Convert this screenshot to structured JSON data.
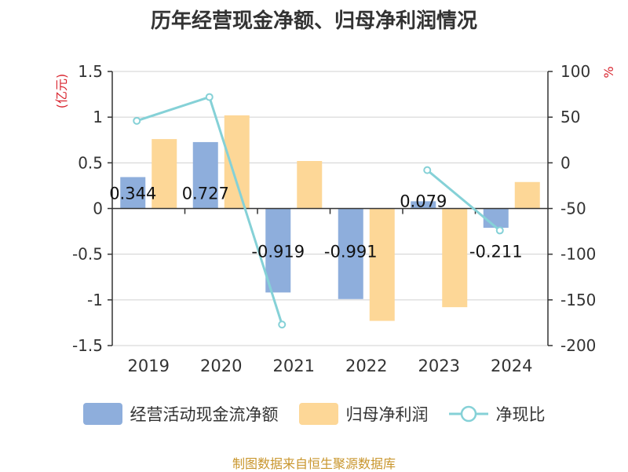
{
  "title": "历年经营现金净额、归母净利润情况",
  "left_unit": "(亿元)",
  "right_unit": "%",
  "source": "制图数据来自恒生聚源数据库",
  "legend": {
    "cash_flow": "经营活动现金流净额",
    "net_profit": "归母净利润",
    "ratio": "净现比"
  },
  "colors": {
    "cash_flow": "#8eaedc",
    "net_profit": "#fdd797",
    "ratio": "#85d1d7",
    "unit_label": "#d9252f",
    "source": "#c9962d"
  },
  "chart_data": {
    "type": "bar",
    "categories": [
      "2019",
      "2020",
      "2021",
      "2022",
      "2023",
      "2024"
    ],
    "series": [
      {
        "name": "经营活动现金流净额",
        "type": "bar",
        "axis": "left",
        "values": [
          0.344,
          0.727,
          -0.919,
          -0.991,
          0.079,
          -0.211
        ],
        "labels": [
          "0.344",
          "0.727",
          "-0.919",
          "-0.991",
          "0.079",
          "-0.211"
        ]
      },
      {
        "name": "归母净利润",
        "type": "bar",
        "axis": "left",
        "values": [
          0.76,
          1.02,
          0.52,
          -1.23,
          -1.08,
          0.29
        ]
      },
      {
        "name": "净现比",
        "type": "line",
        "axis": "right",
        "values": [
          46,
          72,
          -177,
          null,
          -8,
          -74
        ]
      }
    ],
    "left_axis": {
      "min": -1.5,
      "max": 1.5,
      "ticks": [
        "-1.5",
        "-1",
        "-0.5",
        "0",
        "0.5",
        "1",
        "1.5"
      ]
    },
    "right_axis": {
      "min": -200,
      "max": 100,
      "ticks": [
        "-200",
        "-150",
        "-100",
        "-50",
        "0",
        "50",
        "100"
      ]
    },
    "grid": true,
    "legend_position": "bottom"
  }
}
